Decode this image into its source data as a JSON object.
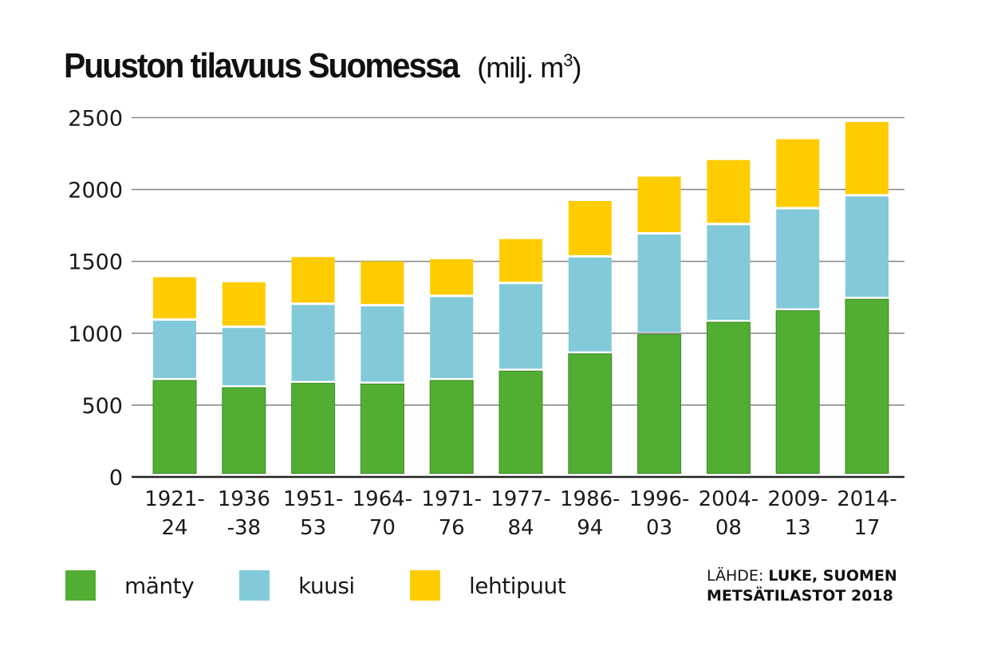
{
  "title": {
    "main": "Puuston tilavuus Suomessa",
    "unit_prefix": "(milj. m",
    "unit_sup": "3",
    "unit_suffix": ")"
  },
  "chart_data": {
    "type": "bar",
    "stacked": true,
    "title": "Puuston tilavuus Suomessa (milj. m³)",
    "xlabel": "",
    "ylabel": "",
    "ylim": [
      0,
      2500
    ],
    "yticks": [
      "0",
      "500",
      "1000",
      "1500",
      "2000",
      "2500"
    ],
    "grid": true,
    "categories": [
      {
        "line1": "1921-",
        "line2": "24"
      },
      {
        "line1": "1936",
        "line2": "-38"
      },
      {
        "line1": "1951-",
        "line2": "53"
      },
      {
        "line1": "1964-",
        "line2": "70"
      },
      {
        "line1": "1971-",
        "line2": "76"
      },
      {
        "line1": "1977-",
        "line2": "84"
      },
      {
        "line1": "1986-",
        "line2": "94"
      },
      {
        "line1": "1996-",
        "line2": "03"
      },
      {
        "line1": "2004-",
        "line2": "08"
      },
      {
        "line1": "2009-",
        "line2": "13"
      },
      {
        "line1": "2014-",
        "line2": "17"
      }
    ],
    "series": [
      {
        "name": "mänty",
        "color": "#52ae32",
        "values": [
          680,
          630,
          660,
          655,
          680,
          745,
          865,
          1000,
          1085,
          1165,
          1245
        ]
      },
      {
        "name": "kuusi",
        "color": "#82c9d9",
        "values": [
          415,
          415,
          545,
          540,
          580,
          605,
          670,
          695,
          675,
          705,
          715
        ]
      },
      {
        "name": "lehtipuut",
        "color": "#ffcc00",
        "values": [
          295,
          310,
          325,
          305,
          255,
          305,
          385,
          395,
          445,
          480,
          510
        ]
      }
    ],
    "legend_position": "bottom-left"
  },
  "source": {
    "label": "LÄHDE: ",
    "line1": "LUKE, SUOMEN",
    "line2": "METSÄTILASTOT 2018"
  }
}
